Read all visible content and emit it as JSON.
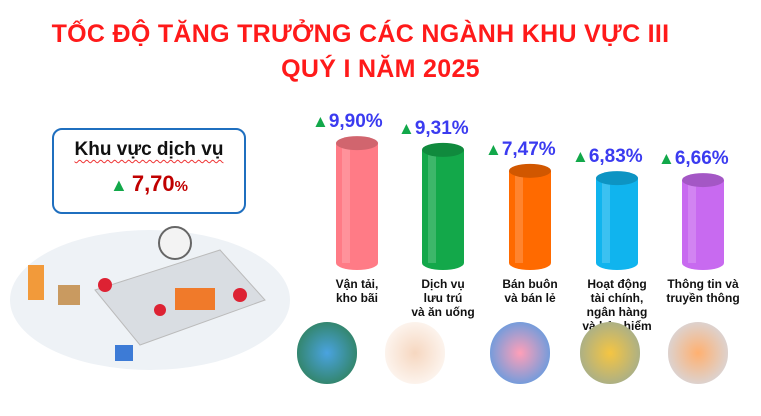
{
  "title_line1": "TỐC ĐỘ TĂNG TRƯỞNG CÁC NGÀNH KHU VỰC III",
  "title_line2": "QUÝ I NĂM 2025",
  "summary": {
    "label": "Khu vực dịch vụ",
    "value": "7,70",
    "unit": "%",
    "trend": "up"
  },
  "chart_data": {
    "type": "bar",
    "title": "TỐC ĐỘ TĂNG TRƯỞNG CÁC NGÀNH KHU VỰC III QUÝ I NĂM 2025",
    "categories": [
      "Vận tải,\nkho bãi",
      "Dịch vụ\nlưu trú\nvà ăn uống",
      "Bán buôn\nvà bán lẻ",
      "Hoạt động\ntài chính,\nngân hàng\nvà bảo hiểm",
      "Thông tin và\ntruyền thông"
    ],
    "values": [
      9.9,
      9.31,
      7.47,
      6.83,
      6.66
    ],
    "labels": [
      "9,90%",
      "9,31%",
      "7,47%",
      "6,83%",
      "6,66%"
    ],
    "colors": [
      "#ff7b86",
      "#13a84a",
      "#ff6a00",
      "#10b4ee",
      "#c86af0"
    ],
    "unit": "%",
    "grid": false,
    "legend": "none",
    "xlabel": "",
    "ylabel": ""
  },
  "colors": {
    "title": "#ff1a1a",
    "label": "#3b3bf0",
    "up_arrow": "#12a84a",
    "summary_value": "#c00000",
    "box_border": "#1f6fbf"
  }
}
